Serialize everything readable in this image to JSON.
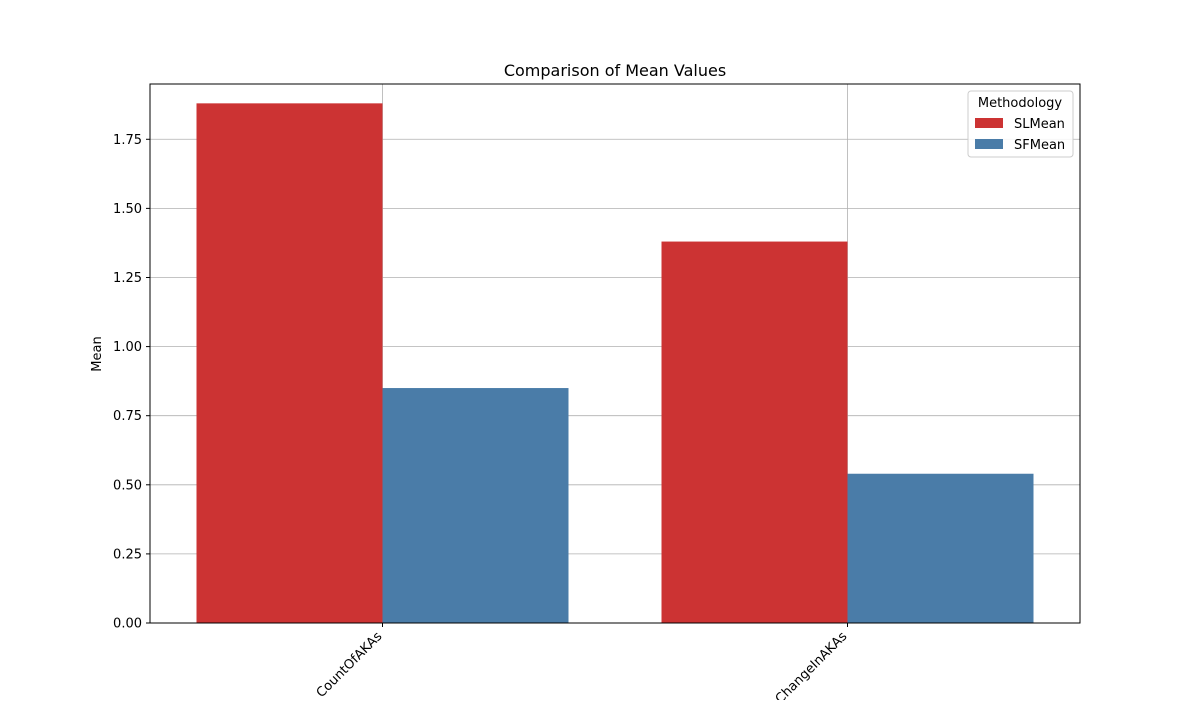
{
  "chart_data": {
    "type": "bar",
    "title": "Comparison of Mean Values",
    "xlabel": "",
    "ylabel": "Mean",
    "categories": [
      "CountOfAKAs",
      "ChangeInAKAs"
    ],
    "series": [
      {
        "name": "SLMean",
        "values": [
          1.88,
          1.38
        ],
        "color": "#cc3333"
      },
      {
        "name": "SFMean",
        "values": [
          0.85,
          0.54
        ],
        "color": "#4a7ca8"
      }
    ],
    "ylim": [
      0,
      1.95
    ],
    "yticks": [
      0.0,
      0.25,
      0.5,
      0.75,
      1.0,
      1.25,
      1.5,
      1.75
    ],
    "ytick_labels": [
      "0.00",
      "0.25",
      "0.50",
      "0.75",
      "1.00",
      "1.25",
      "1.50",
      "1.75"
    ],
    "grid": true,
    "legend": {
      "title": "Methodology",
      "placement": "top-right"
    }
  }
}
